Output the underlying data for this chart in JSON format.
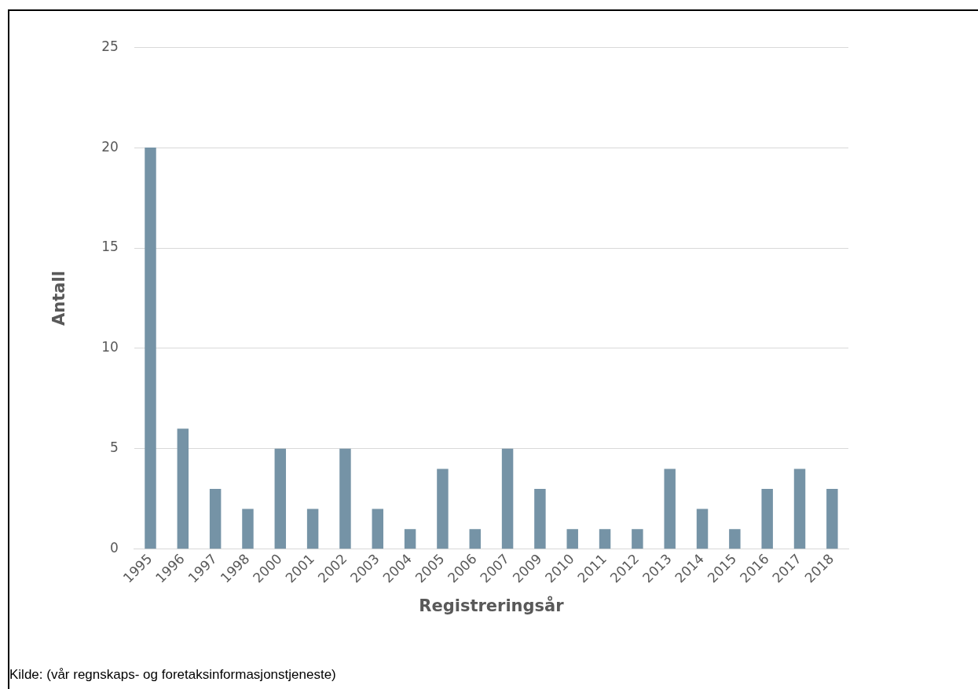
{
  "chart_data": {
    "type": "bar",
    "xlabel": "Registreringsår",
    "ylabel": "Antall",
    "categories": [
      "1995",
      "1996",
      "1997",
      "1998",
      "2000",
      "2001",
      "2002",
      "2003",
      "2004",
      "2005",
      "2006",
      "2007",
      "2009",
      "2010",
      "2011",
      "2012",
      "2013",
      "2014",
      "2015",
      "2016",
      "2017",
      "2018"
    ],
    "values": [
      20,
      6,
      3,
      2,
      5,
      2,
      5,
      2,
      1,
      4,
      1,
      5,
      3,
      1,
      1,
      1,
      4,
      2,
      1,
      3,
      4,
      3
    ],
    "color": "#7593a6",
    "ylim": [
      0,
      25
    ],
    "yticks": [
      0,
      5,
      10,
      15,
      20,
      25
    ],
    "grid": "y",
    "legend": false,
    "annotations": [
      "Kilde: (vår regnskaps- og foretaksinformasjonstjeneste)"
    ]
  }
}
